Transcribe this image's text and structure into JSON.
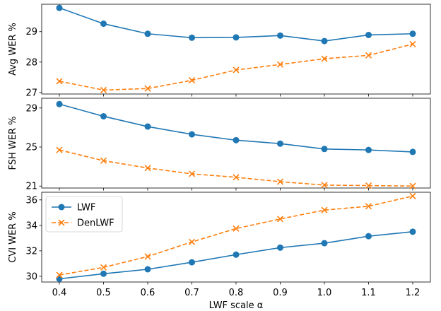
{
  "colors": {
    "lwf": "#1f77b4",
    "denlwf": "#ff7f0e"
  },
  "chart_data": [
    {
      "type": "line",
      "ylabel": "Avg WER %",
      "ylim": [
        26.95,
        29.9
      ],
      "yticks": [
        27,
        28,
        29
      ],
      "x": [
        0.4,
        0.5,
        0.6,
        0.7,
        0.8,
        0.9,
        1.0,
        1.1,
        1.2
      ],
      "series": [
        {
          "name": "LWF",
          "values": [
            29.78,
            29.26,
            28.93,
            28.8,
            28.81,
            28.87,
            28.69,
            28.89,
            28.93
          ]
        },
        {
          "name": "DenLWF",
          "values": [
            27.37,
            27.08,
            27.13,
            27.4,
            27.74,
            27.92,
            28.11,
            28.22,
            28.59
          ]
        }
      ]
    },
    {
      "type": "line",
      "ylabel": "FSH WER %",
      "ylim": [
        20.8,
        30.0
      ],
      "yticks": [
        21,
        25,
        29
      ],
      "x": [
        0.4,
        0.5,
        0.6,
        0.7,
        0.8,
        0.9,
        1.0,
        1.1,
        1.2
      ],
      "series": [
        {
          "name": "LWF",
          "values": [
            29.4,
            28.15,
            27.1,
            26.3,
            25.7,
            25.35,
            24.8,
            24.7,
            24.5
          ]
        },
        {
          "name": "DenLWF",
          "values": [
            24.7,
            23.6,
            22.85,
            22.25,
            21.9,
            21.45,
            21.1,
            21.05,
            21.0
          ]
        }
      ]
    },
    {
      "type": "line",
      "ylabel": "CVI WER %",
      "ylim": [
        29.55,
        36.6
      ],
      "yticks": [
        30,
        32,
        34,
        36
      ],
      "x": [
        0.4,
        0.5,
        0.6,
        0.7,
        0.8,
        0.9,
        1.0,
        1.1,
        1.2
      ],
      "xticks": [
        "0.4",
        "0.5",
        "0.6",
        "0.7",
        "0.8",
        "0.9",
        "1.0",
        "1.1",
        "1.2"
      ],
      "xlabel": "LWF scale α",
      "legend": "upper-left",
      "series": [
        {
          "name": "LWF",
          "values": [
            29.8,
            30.2,
            30.55,
            31.1,
            31.7,
            32.25,
            32.6,
            33.15,
            33.5
          ]
        },
        {
          "name": "DenLWF",
          "values": [
            30.1,
            30.7,
            31.55,
            32.7,
            33.75,
            34.5,
            35.2,
            35.5,
            36.3
          ]
        }
      ]
    }
  ]
}
